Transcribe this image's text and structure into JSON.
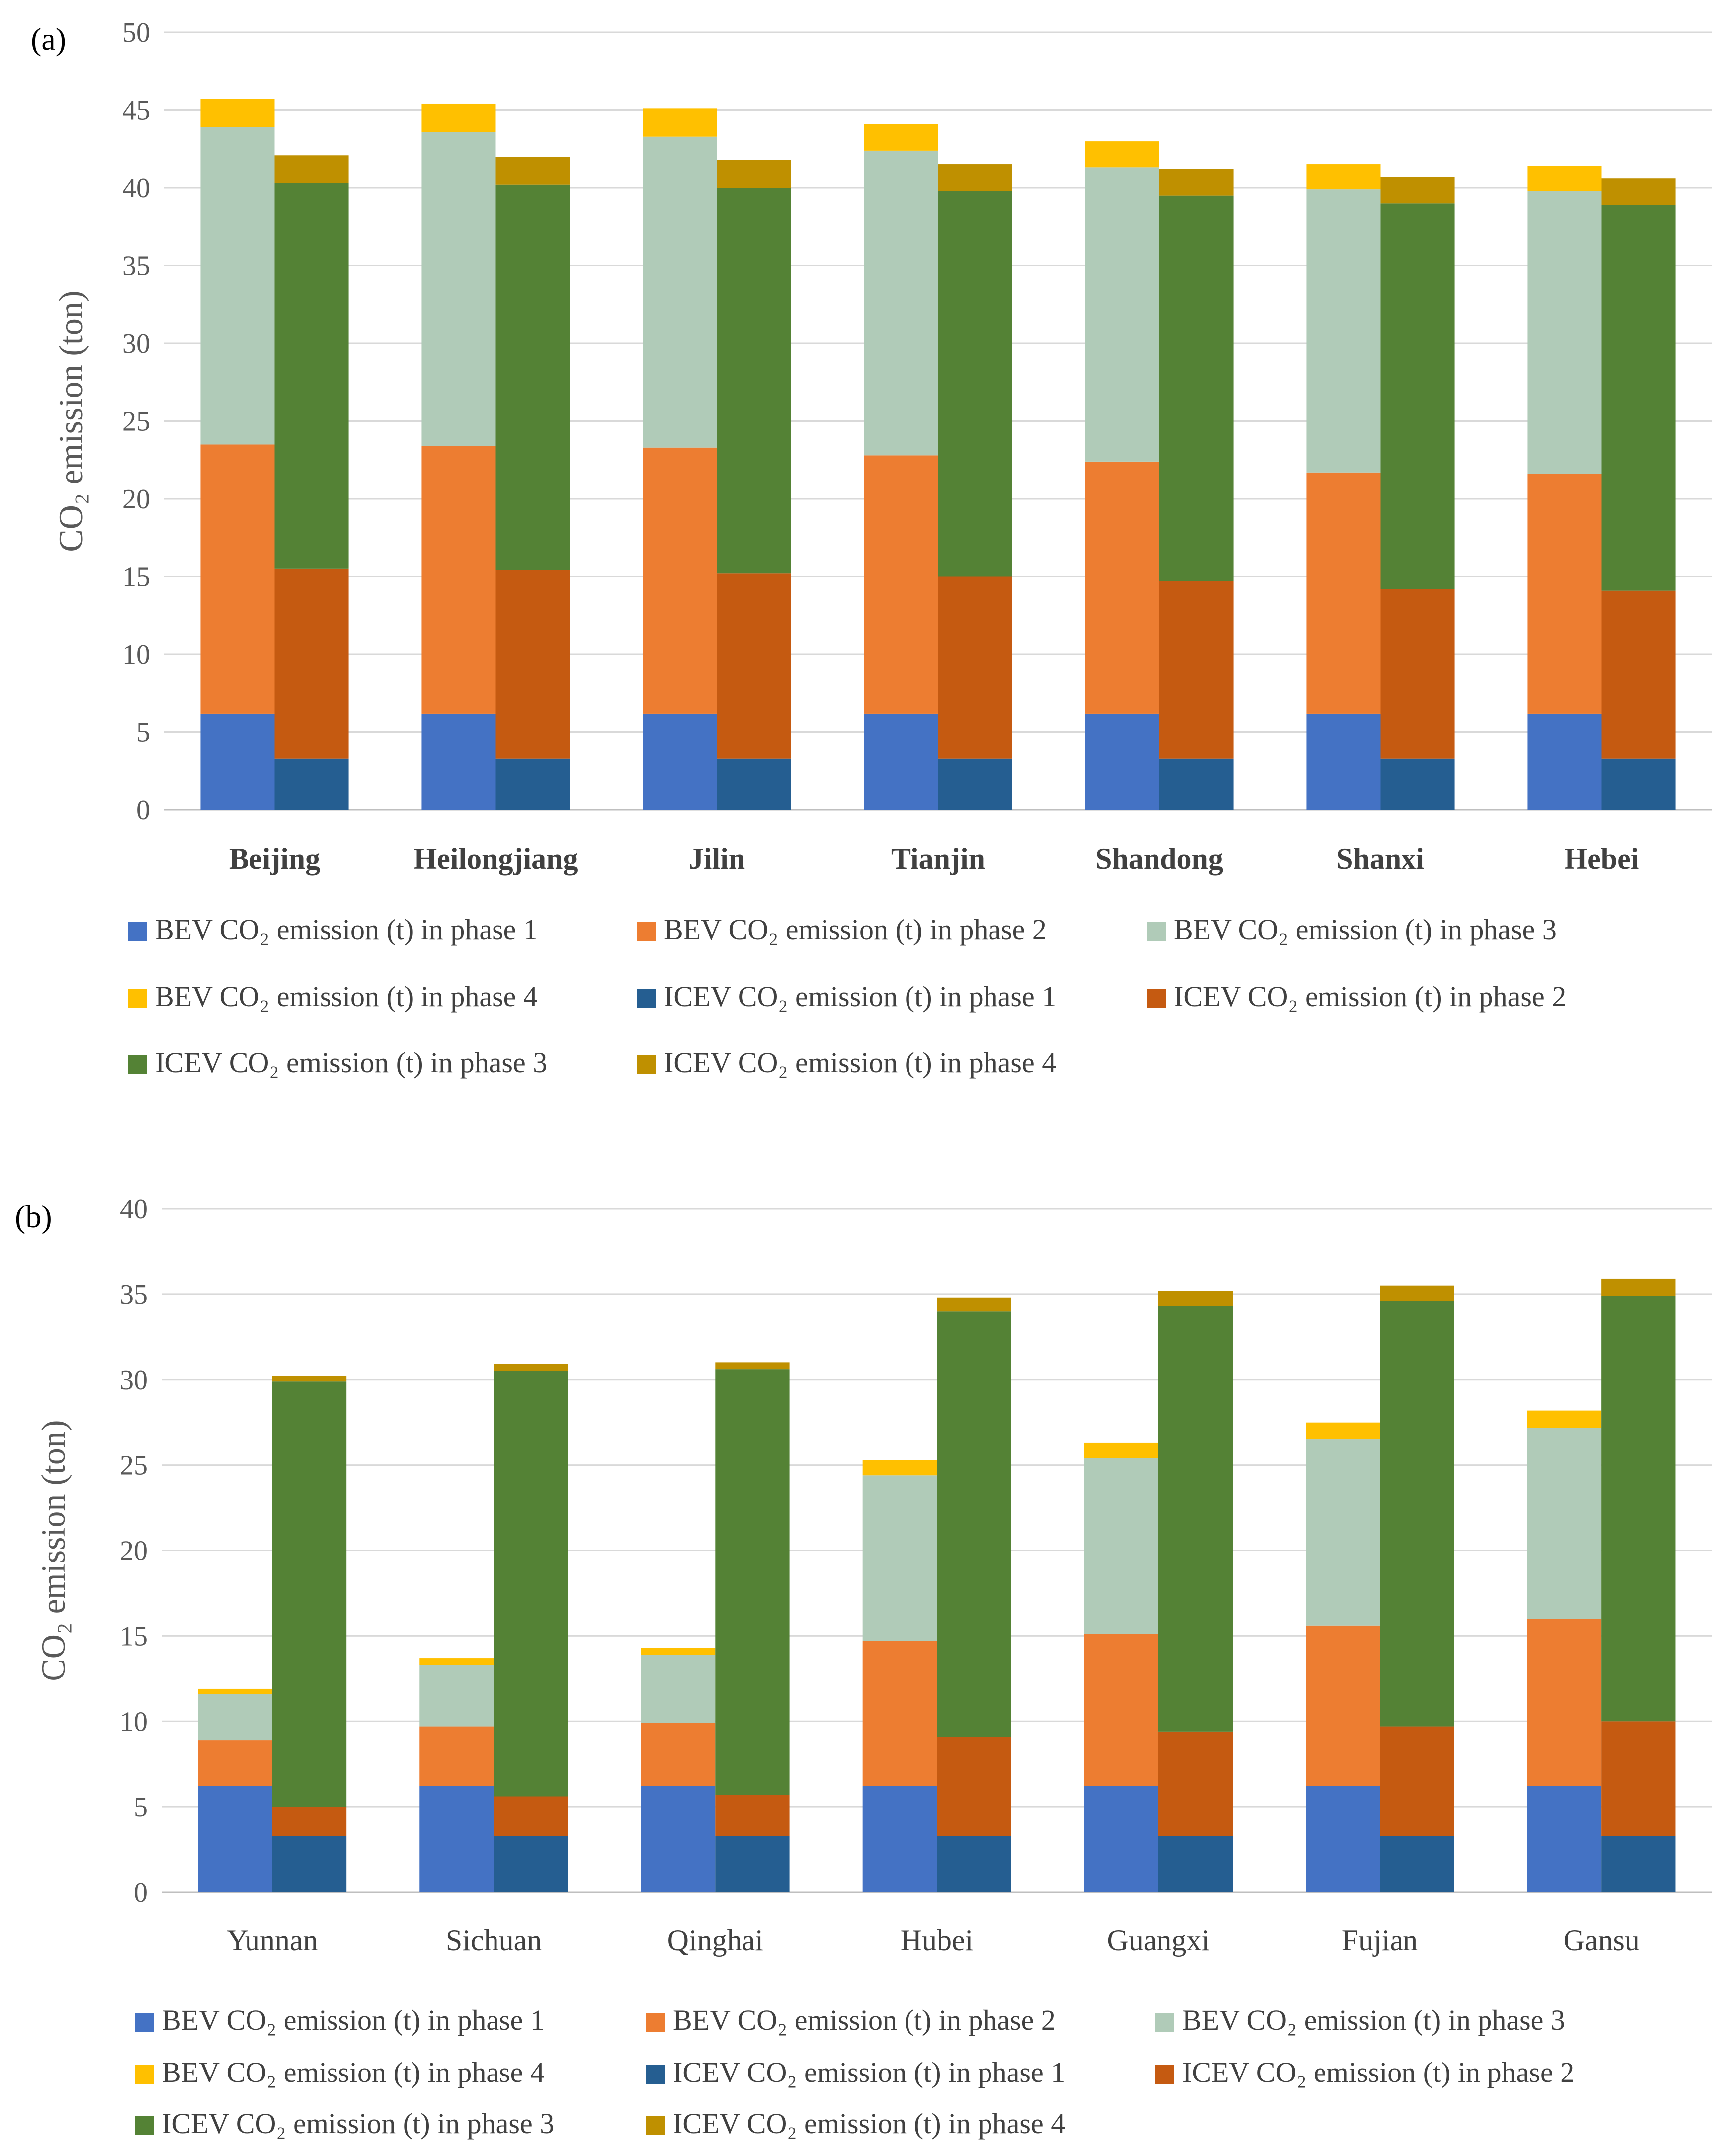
{
  "chart_data": [
    {
      "type": "bar",
      "stacked": true,
      "panel_label": "(a)",
      "ylabel": "CO₂ emission (ton)",
      "ylim": [
        0,
        50
      ],
      "ytick_step": 5,
      "category_style": "bold",
      "categories": [
        "Beijing",
        "Heilongjiang",
        "Jilin",
        "Tianjin",
        "Shandong",
        "Shanxi",
        "Hebei"
      ],
      "groups": [
        {
          "name": "BEV",
          "series": [
            {
              "name": "BEV CO₂ emission (t) in phase 1",
              "color": "#4472C4",
              "values": [
                6.2,
                6.2,
                6.2,
                6.2,
                6.2,
                6.2,
                6.2
              ]
            },
            {
              "name": "BEV CO₂ emission (t) in phase 2",
              "color": "#ED7D31",
              "values": [
                17.3,
                17.2,
                17.1,
                16.6,
                16.2,
                15.5,
                15.4
              ]
            },
            {
              "name": "BEV CO₂ emission (t) in phase 3",
              "color": "#B0CBB8",
              "values": [
                20.4,
                20.2,
                20.0,
                19.6,
                18.9,
                18.2,
                18.2
              ]
            },
            {
              "name": "BEV CO₂ emission (t) in phase 4",
              "color": "#FFC000",
              "values": [
                1.8,
                1.8,
                1.8,
                1.7,
                1.7,
                1.6,
                1.6
              ]
            }
          ]
        },
        {
          "name": "ICEV",
          "series": [
            {
              "name": "ICEV CO₂ emission (t) in phase 1",
              "color": "#255E91",
              "values": [
                3.3,
                3.3,
                3.3,
                3.3,
                3.3,
                3.3,
                3.3
              ]
            },
            {
              "name": "ICEV CO₂ emission (t) in phase 2",
              "color": "#C55A11",
              "values": [
                12.2,
                12.1,
                11.9,
                11.7,
                11.4,
                10.9,
                10.8
              ]
            },
            {
              "name": "ICEV CO₂ emission (t) in phase 3",
              "color": "#548235",
              "values": [
                24.8,
                24.8,
                24.8,
                24.8,
                24.8,
                24.8,
                24.8
              ]
            },
            {
              "name": "ICEV CO₂ emission (t) in phase 4",
              "color": "#BF9000",
              "values": [
                1.8,
                1.8,
                1.8,
                1.7,
                1.7,
                1.7,
                1.7
              ]
            }
          ]
        }
      ],
      "legend": [
        "BEV CO₂ emission (t) in phase 1",
        "BEV CO₂ emission (t) in phase 2",
        "BEV CO₂ emission (t) in phase 3",
        "BEV CO₂ emission (t) in phase 4",
        "ICEV CO₂ emission (t) in phase 1",
        "ICEV CO₂ emission (t) in phase 2",
        "ICEV CO₂ emission (t) in phase 3",
        "ICEV CO₂ emission (t) in phase 4"
      ],
      "legend_colors": [
        "#4472C4",
        "#ED7D31",
        "#B0CBB8",
        "#FFC000",
        "#255E91",
        "#C55A11",
        "#548235",
        "#BF9000"
      ],
      "grid": true
    },
    {
      "type": "bar",
      "stacked": true,
      "panel_label": "(b)",
      "ylabel": "CO₂ emission (ton)",
      "ylim": [
        0,
        40
      ],
      "ytick_step": 5,
      "category_style": "normal",
      "categories": [
        "Yunnan",
        "Sichuan",
        "Qinghai",
        "Hubei",
        "Guangxi",
        "Fujian",
        "Gansu"
      ],
      "groups": [
        {
          "name": "BEV",
          "series": [
            {
              "name": "BEV CO₂ emission (t) in phase 1",
              "color": "#4472C4",
              "values": [
                6.2,
                6.2,
                6.2,
                6.2,
                6.2,
                6.2,
                6.2
              ]
            },
            {
              "name": "BEV CO₂ emission (t) in phase 2",
              "color": "#ED7D31",
              "values": [
                2.7,
                3.5,
                3.7,
                8.5,
                8.9,
                9.4,
                9.8
              ]
            },
            {
              "name": "BEV CO₂ emission (t) in phase 3",
              "color": "#B0CBB8",
              "values": [
                2.7,
                3.6,
                4.0,
                9.7,
                10.3,
                10.9,
                11.2
              ]
            },
            {
              "name": "BEV CO₂ emission (t) in phase 4",
              "color": "#FFC000",
              "values": [
                0.3,
                0.4,
                0.4,
                0.9,
                0.9,
                1.0,
                1.0
              ]
            }
          ]
        },
        {
          "name": "ICEV",
          "series": [
            {
              "name": "ICEV CO₂ emission (t) in phase 1",
              "color": "#255E91",
              "values": [
                3.3,
                3.3,
                3.3,
                3.3,
                3.3,
                3.3,
                3.3
              ]
            },
            {
              "name": "ICEV CO₂ emission (t) in phase 2",
              "color": "#C55A11",
              "values": [
                1.7,
                2.3,
                2.4,
                5.8,
                6.1,
                6.4,
                6.7
              ]
            },
            {
              "name": "ICEV CO₂ emission (t) in phase 3",
              "color": "#548235",
              "values": [
                24.9,
                24.9,
                24.9,
                24.9,
                24.9,
                24.9,
                24.9
              ]
            },
            {
              "name": "ICEV CO₂ emission (t) in phase 4",
              "color": "#BF9000",
              "values": [
                0.3,
                0.4,
                0.4,
                0.8,
                0.9,
                0.9,
                1.0
              ]
            }
          ]
        }
      ],
      "legend": [
        "BEV CO₂ emission (t) in phase 1",
        "BEV CO₂ emission (t) in phase 2",
        "BEV CO₂ emission (t) in phase 3",
        "BEV CO₂ emission (t) in phase 4",
        "ICEV CO₂ emission (t) in phase 1",
        "ICEV CO₂ emission (t) in phase 2",
        "ICEV CO₂ emission (t) in phase 3",
        "ICEV CO₂ emission (t) in phase 4"
      ],
      "legend_colors": [
        "#4472C4",
        "#ED7D31",
        "#B0CBB8",
        "#FFC000",
        "#255E91",
        "#C55A11",
        "#548235",
        "#BF9000"
      ],
      "grid": true
    }
  ]
}
